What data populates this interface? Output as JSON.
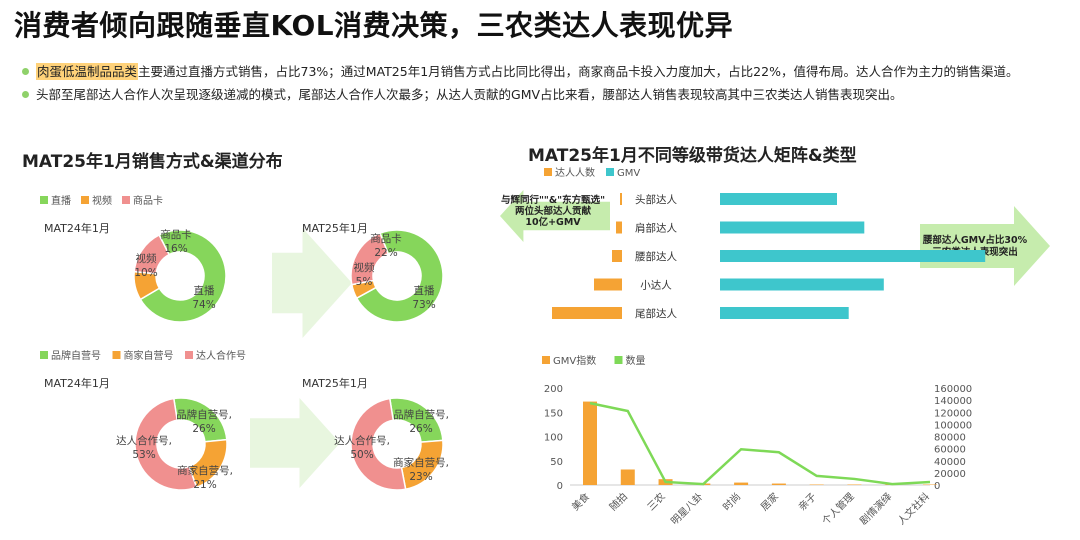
{
  "page": {
    "title": "消费者倾向跟随垂直KOL消费决策，三农类达人表现优异",
    "bullets": [
      {
        "highlight": "肉蛋低温制品品类",
        "text": "主要通过直播方式销售，占比73%；通过MAT25年1月销售方式占比同比得出，商家商品卡投入力度加大，占比22%，值得布局。达人合作为主力的销售渠道。"
      },
      {
        "text": "头部至尾部达人合作人次呈现逐级递减的模式，尾部达人合作人次最多；从达人贡献的GMV占比来看，腰部达人销售表现较高其中三农类达人销售表现突出。"
      }
    ],
    "left_title": "MAT25年1月销售方式&渠道分布",
    "right_title": "MAT25年1月不同等级带货达人矩阵&类型",
    "colors": {
      "green": "#86d65b",
      "orange": "#f5a334",
      "pink": "#f0908f",
      "teal": "#3ec6cc",
      "line_green": "#7ed957"
    }
  },
  "chart_data": [
    {
      "type": "pie",
      "subtitle": "MAT24年1月",
      "donut": true,
      "legend": [
        "直播",
        "视频",
        "商品卡"
      ],
      "slices": [
        {
          "label": "直播",
          "value": 74,
          "text": "74%"
        },
        {
          "label": "视频",
          "value": 10,
          "text": "10%"
        },
        {
          "label": "商品卡",
          "value": 16,
          "text": "16%"
        }
      ]
    },
    {
      "type": "pie",
      "subtitle": "MAT25年1月",
      "donut": true,
      "slices": [
        {
          "label": "直播",
          "value": 73,
          "text": "73%"
        },
        {
          "label": "视频",
          "value": 5,
          "text": "5%"
        },
        {
          "label": "商品卡",
          "value": 22,
          "text": "22%"
        }
      ]
    },
    {
      "type": "pie",
      "subtitle": "MAT24年1月",
      "donut": true,
      "legend": [
        "品牌自营号",
        "商家自营号",
        "达人合作号"
      ],
      "slices": [
        {
          "label": "品牌自营号,",
          "value": 26,
          "text": "26%"
        },
        {
          "label": "商家自营号,",
          "value": 21,
          "text": "21%"
        },
        {
          "label": "达人合作号,",
          "value": 53,
          "text": "53%"
        }
      ]
    },
    {
      "type": "pie",
      "subtitle": "MAT25年1月",
      "donut": true,
      "slices": [
        {
          "label": "品牌自营号,",
          "value": 26,
          "text": "26%"
        },
        {
          "label": "商家自营号,",
          "value": 23,
          "text": "23%"
        },
        {
          "label": "达人合作号,",
          "value": 50,
          "text": "50%"
        }
      ]
    },
    {
      "type": "bar",
      "orientation": "horizontal-butterfly",
      "legend": [
        "达人人数",
        "GMV"
      ],
      "categories": [
        "头部达人",
        "肩部达人",
        "腰部达人",
        "小达人",
        "尾部达人"
      ],
      "series": [
        {
          "name": "达人人数",
          "values": [
            2,
            6,
            10,
            28,
            70
          ]
        },
        {
          "name": "GMV",
          "values": [
            30,
            37,
            68,
            42,
            33
          ]
        }
      ],
      "annotations": [
        {
          "text": "与辉同行\"\"&\"东方甄选\"\n两位头部达人贡献\n10亿+GMV",
          "side": "left"
        },
        {
          "text": "腰部达人GMV占比30%\n三农类达人表现突出",
          "side": "right"
        }
      ]
    },
    {
      "type": "bar",
      "combo": "bar+line",
      "legend": [
        "GMV指数",
        "数量"
      ],
      "categories": [
        "美食",
        "随拍",
        "三农",
        "明星八卦",
        "时尚",
        "居家",
        "亲子",
        "个人管理",
        "剧情演绎",
        "人文社科"
      ],
      "series": [
        {
          "name": "GMV指数",
          "type": "bar",
          "axis": "left",
          "values": [
            172,
            32,
            12,
            3,
            5,
            3,
            1,
            1,
            1,
            1
          ]
        },
        {
          "name": "数量",
          "type": "line",
          "axis": "right",
          "values": [
            135000,
            122000,
            5000,
            1500,
            59000,
            54000,
            15000,
            10000,
            1500,
            5000
          ]
        }
      ],
      "y_left": {
        "ticks": [
          "0",
          "50",
          "100",
          "150",
          "200"
        ],
        "range": [
          0,
          200
        ]
      },
      "y_right": {
        "ticks": [
          "0",
          "20000",
          "40000",
          "60000",
          "80000",
          "100000",
          "120000",
          "140000",
          "160000"
        ],
        "range": [
          0,
          160000
        ]
      }
    }
  ]
}
